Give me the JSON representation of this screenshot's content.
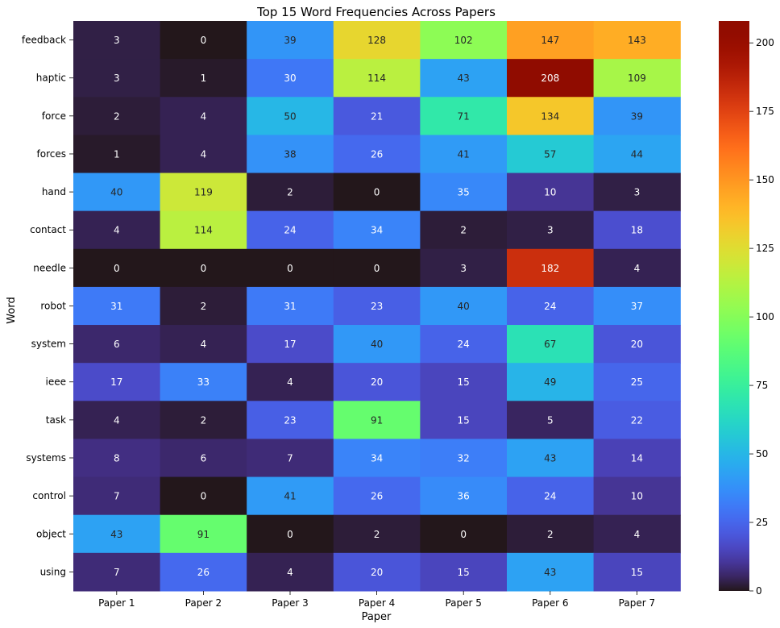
{
  "chart_data": {
    "type": "heatmap",
    "title": "Top 15 Word Frequencies Across Papers",
    "xlabel": "Paper",
    "ylabel": "Word",
    "x_categories": [
      "Paper 1",
      "Paper 2",
      "Paper 3",
      "Paper 4",
      "Paper 5",
      "Paper 6",
      "Paper 7"
    ],
    "y_categories": [
      "feedback",
      "haptic",
      "force",
      "forces",
      "hand",
      "contact",
      "needle",
      "robot",
      "system",
      "ieee",
      "task",
      "systems",
      "control",
      "object",
      "using"
    ],
    "values": [
      [
        3,
        0,
        39,
        128,
        102,
        147,
        143
      ],
      [
        3,
        1,
        30,
        114,
        43,
        208,
        109
      ],
      [
        2,
        4,
        50,
        21,
        71,
        134,
        39
      ],
      [
        1,
        4,
        38,
        26,
        41,
        57,
        44
      ],
      [
        40,
        119,
        2,
        0,
        35,
        10,
        3
      ],
      [
        4,
        114,
        24,
        34,
        2,
        3,
        18
      ],
      [
        0,
        0,
        0,
        0,
        3,
        182,
        4
      ],
      [
        31,
        2,
        31,
        23,
        40,
        24,
        37
      ],
      [
        6,
        4,
        17,
        40,
        24,
        67,
        20
      ],
      [
        17,
        33,
        4,
        20,
        15,
        49,
        25
      ],
      [
        4,
        2,
        23,
        91,
        15,
        5,
        22
      ],
      [
        8,
        6,
        7,
        34,
        32,
        43,
        14
      ],
      [
        7,
        0,
        41,
        26,
        36,
        24,
        10
      ],
      [
        43,
        91,
        0,
        2,
        0,
        2,
        4
      ],
      [
        7,
        26,
        4,
        20,
        15,
        43,
        15
      ]
    ],
    "colormap": "turbo",
    "vmin": 0,
    "vmax": 208,
    "colorbar_ticks": [
      0,
      25,
      50,
      75,
      100,
      125,
      150,
      175,
      200
    ]
  }
}
